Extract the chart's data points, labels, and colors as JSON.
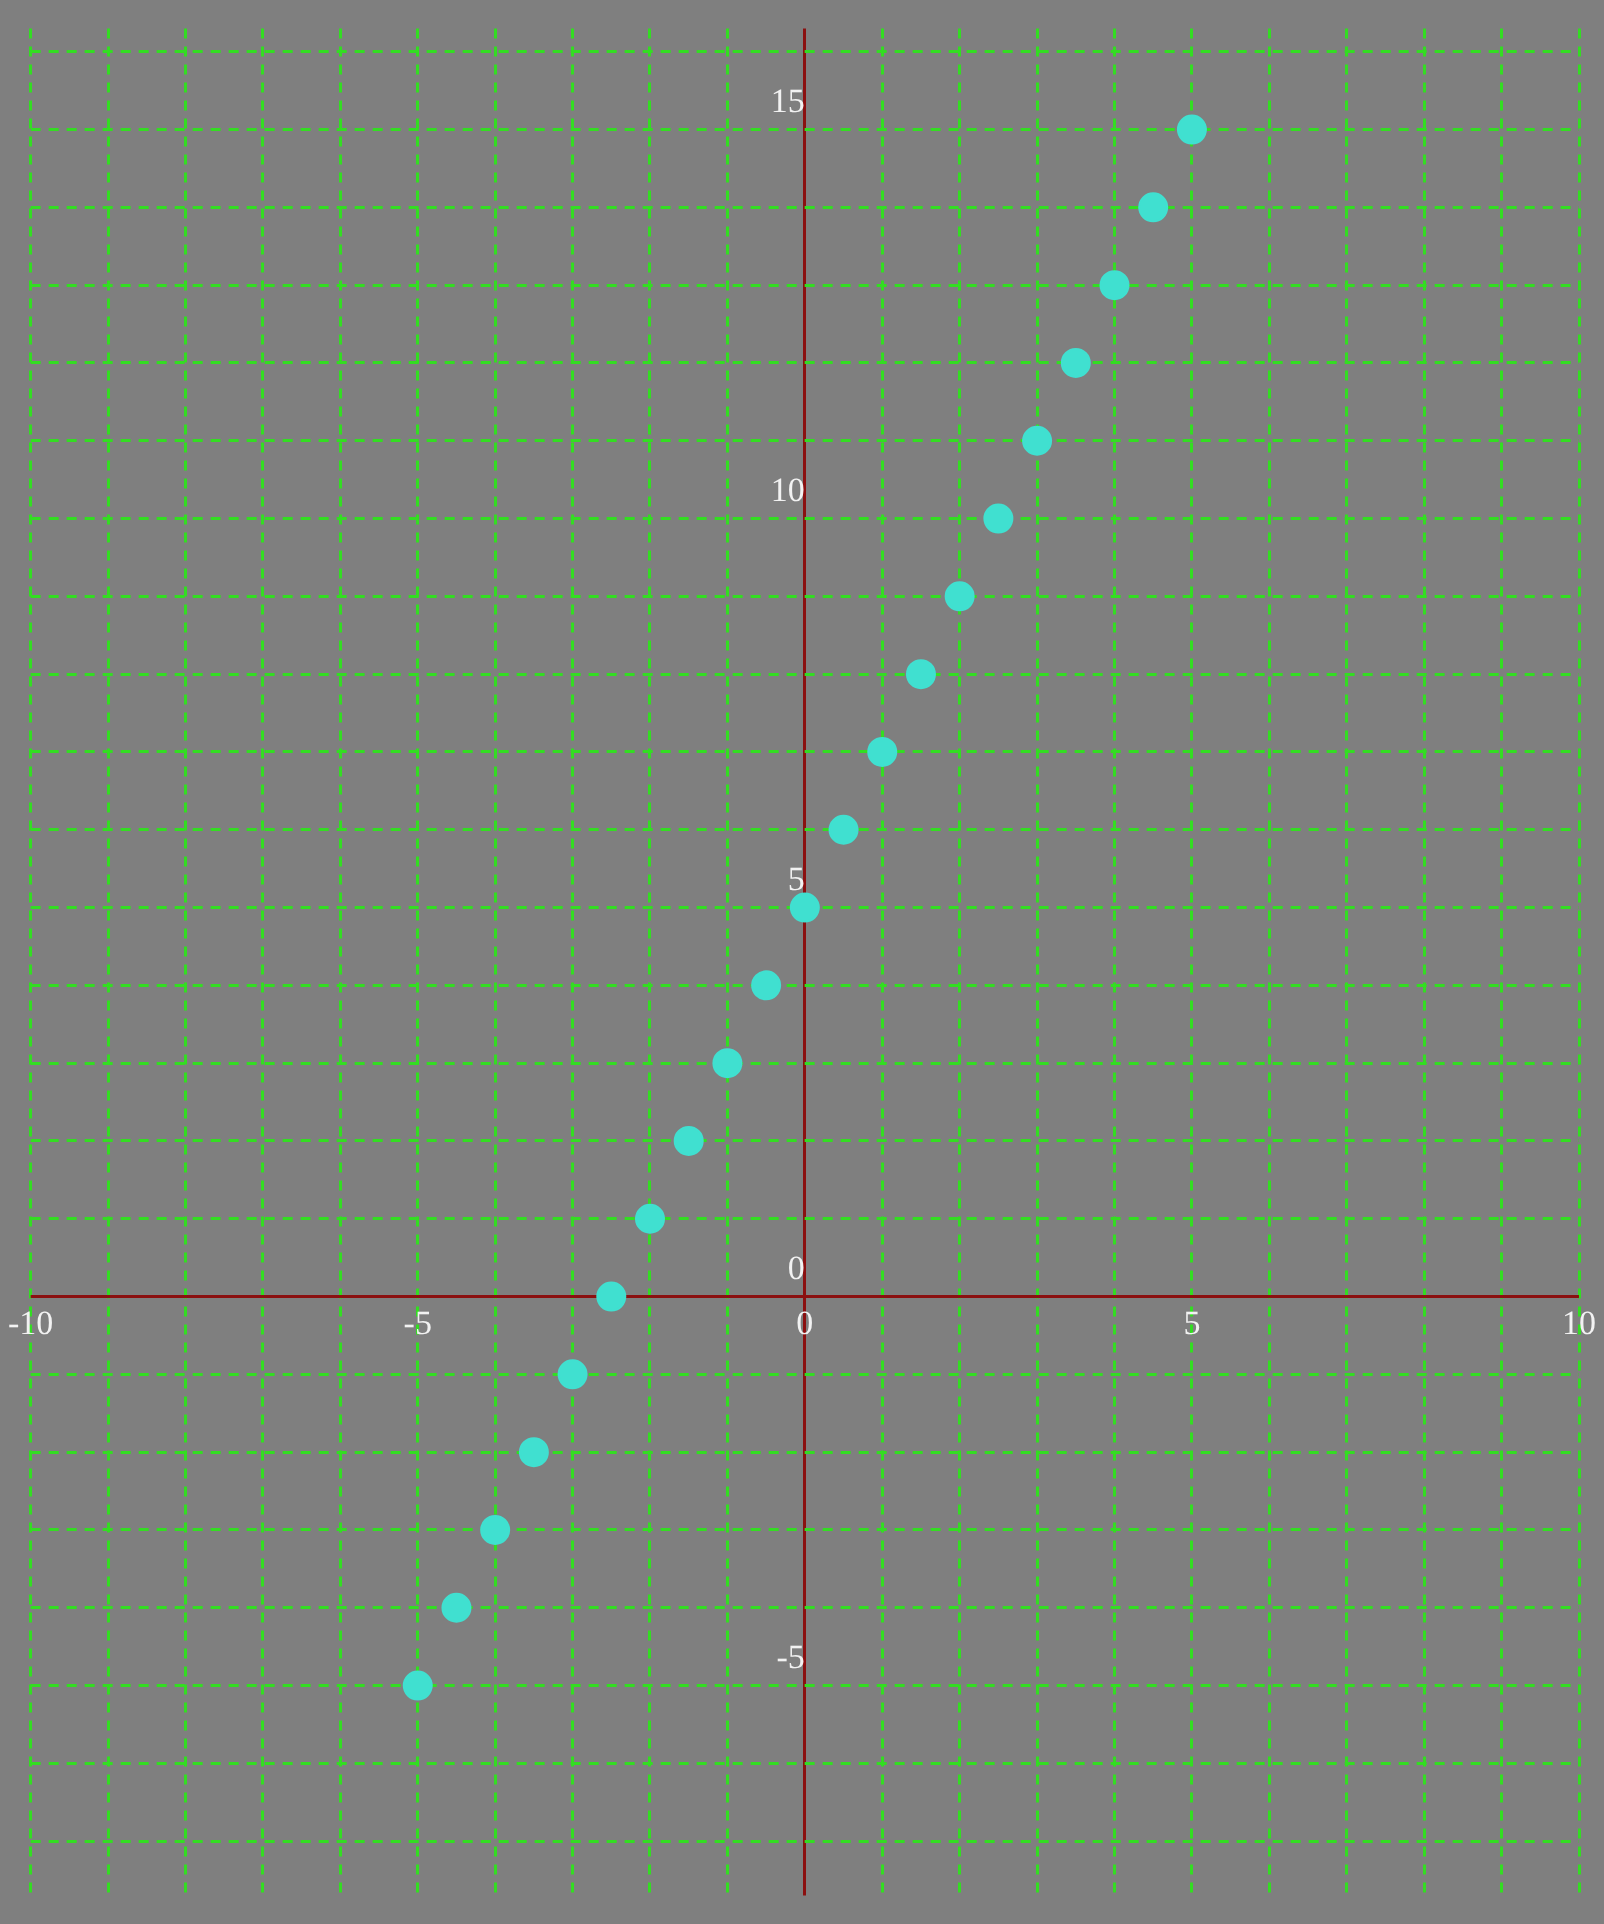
{
  "chart_data": {
    "type": "scatter",
    "x": [
      -5,
      -4.5,
      -4,
      -3.5,
      -3,
      -2.5,
      -2,
      -1.5,
      -1,
      -0.5,
      0,
      0.5,
      1,
      1.5,
      2,
      2.5,
      3,
      3.5,
      4,
      4.5,
      5
    ],
    "series": [
      {
        "color": "#40e0d0",
        "values": [
          -5,
          -4,
          -3,
          -2,
          -1,
          0,
          1,
          2,
          3,
          4,
          5,
          6,
          7,
          8,
          9,
          10,
          11,
          12,
          13,
          14,
          15
        ]
      }
    ],
    "xlim": [
      -10,
      10
    ],
    "ylim": [
      -7.7,
      16.3
    ],
    "xticks": [
      -10,
      {
        "value": -9,
        "label": null
      },
      {
        "value": -8,
        "label": null
      },
      {
        "value": -7,
        "label": null
      },
      {
        "value": -6,
        "label": null
      },
      -5,
      {
        "value": -4,
        "label": null
      },
      {
        "value": -3,
        "label": null
      },
      {
        "value": -2,
        "label": null
      },
      {
        "value": -1,
        "label": null
      },
      0,
      {
        "value": 1,
        "label": null
      },
      {
        "value": 2,
        "label": null
      },
      {
        "value": 3,
        "label": null
      },
      {
        "value": 4,
        "label": null
      },
      5,
      {
        "value": 6,
        "label": null
      },
      {
        "value": 7,
        "label": null
      },
      {
        "value": 8,
        "label": null
      },
      {
        "value": 9,
        "label": null
      },
      10
    ],
    "yticks": [
      {
        "value": -7,
        "label": null
      },
      {
        "value": -6,
        "label": null
      },
      -5,
      {
        "value": -4,
        "label": null
      },
      {
        "value": -3,
        "label": null
      },
      {
        "value": -2,
        "label": null
      },
      {
        "value": -1,
        "label": null
      },
      0,
      {
        "value": 1,
        "label": null
      },
      {
        "value": 2,
        "label": null
      },
      {
        "value": 3,
        "label": null
      },
      {
        "value": 4,
        "label": null
      },
      5,
      {
        "value": 6,
        "label": null
      },
      {
        "value": 7,
        "label": null
      },
      {
        "value": 8,
        "label": null
      },
      {
        "value": 9,
        "label": null
      },
      10,
      {
        "value": 11,
        "label": null
      },
      {
        "value": 12,
        "label": null
      },
      {
        "value": 13,
        "label": null
      },
      {
        "value": 14,
        "label": null
      },
      15,
      {
        "value": 16,
        "label": null
      }
    ],
    "grid": true,
    "marker": "circle",
    "legend": false
  }
}
